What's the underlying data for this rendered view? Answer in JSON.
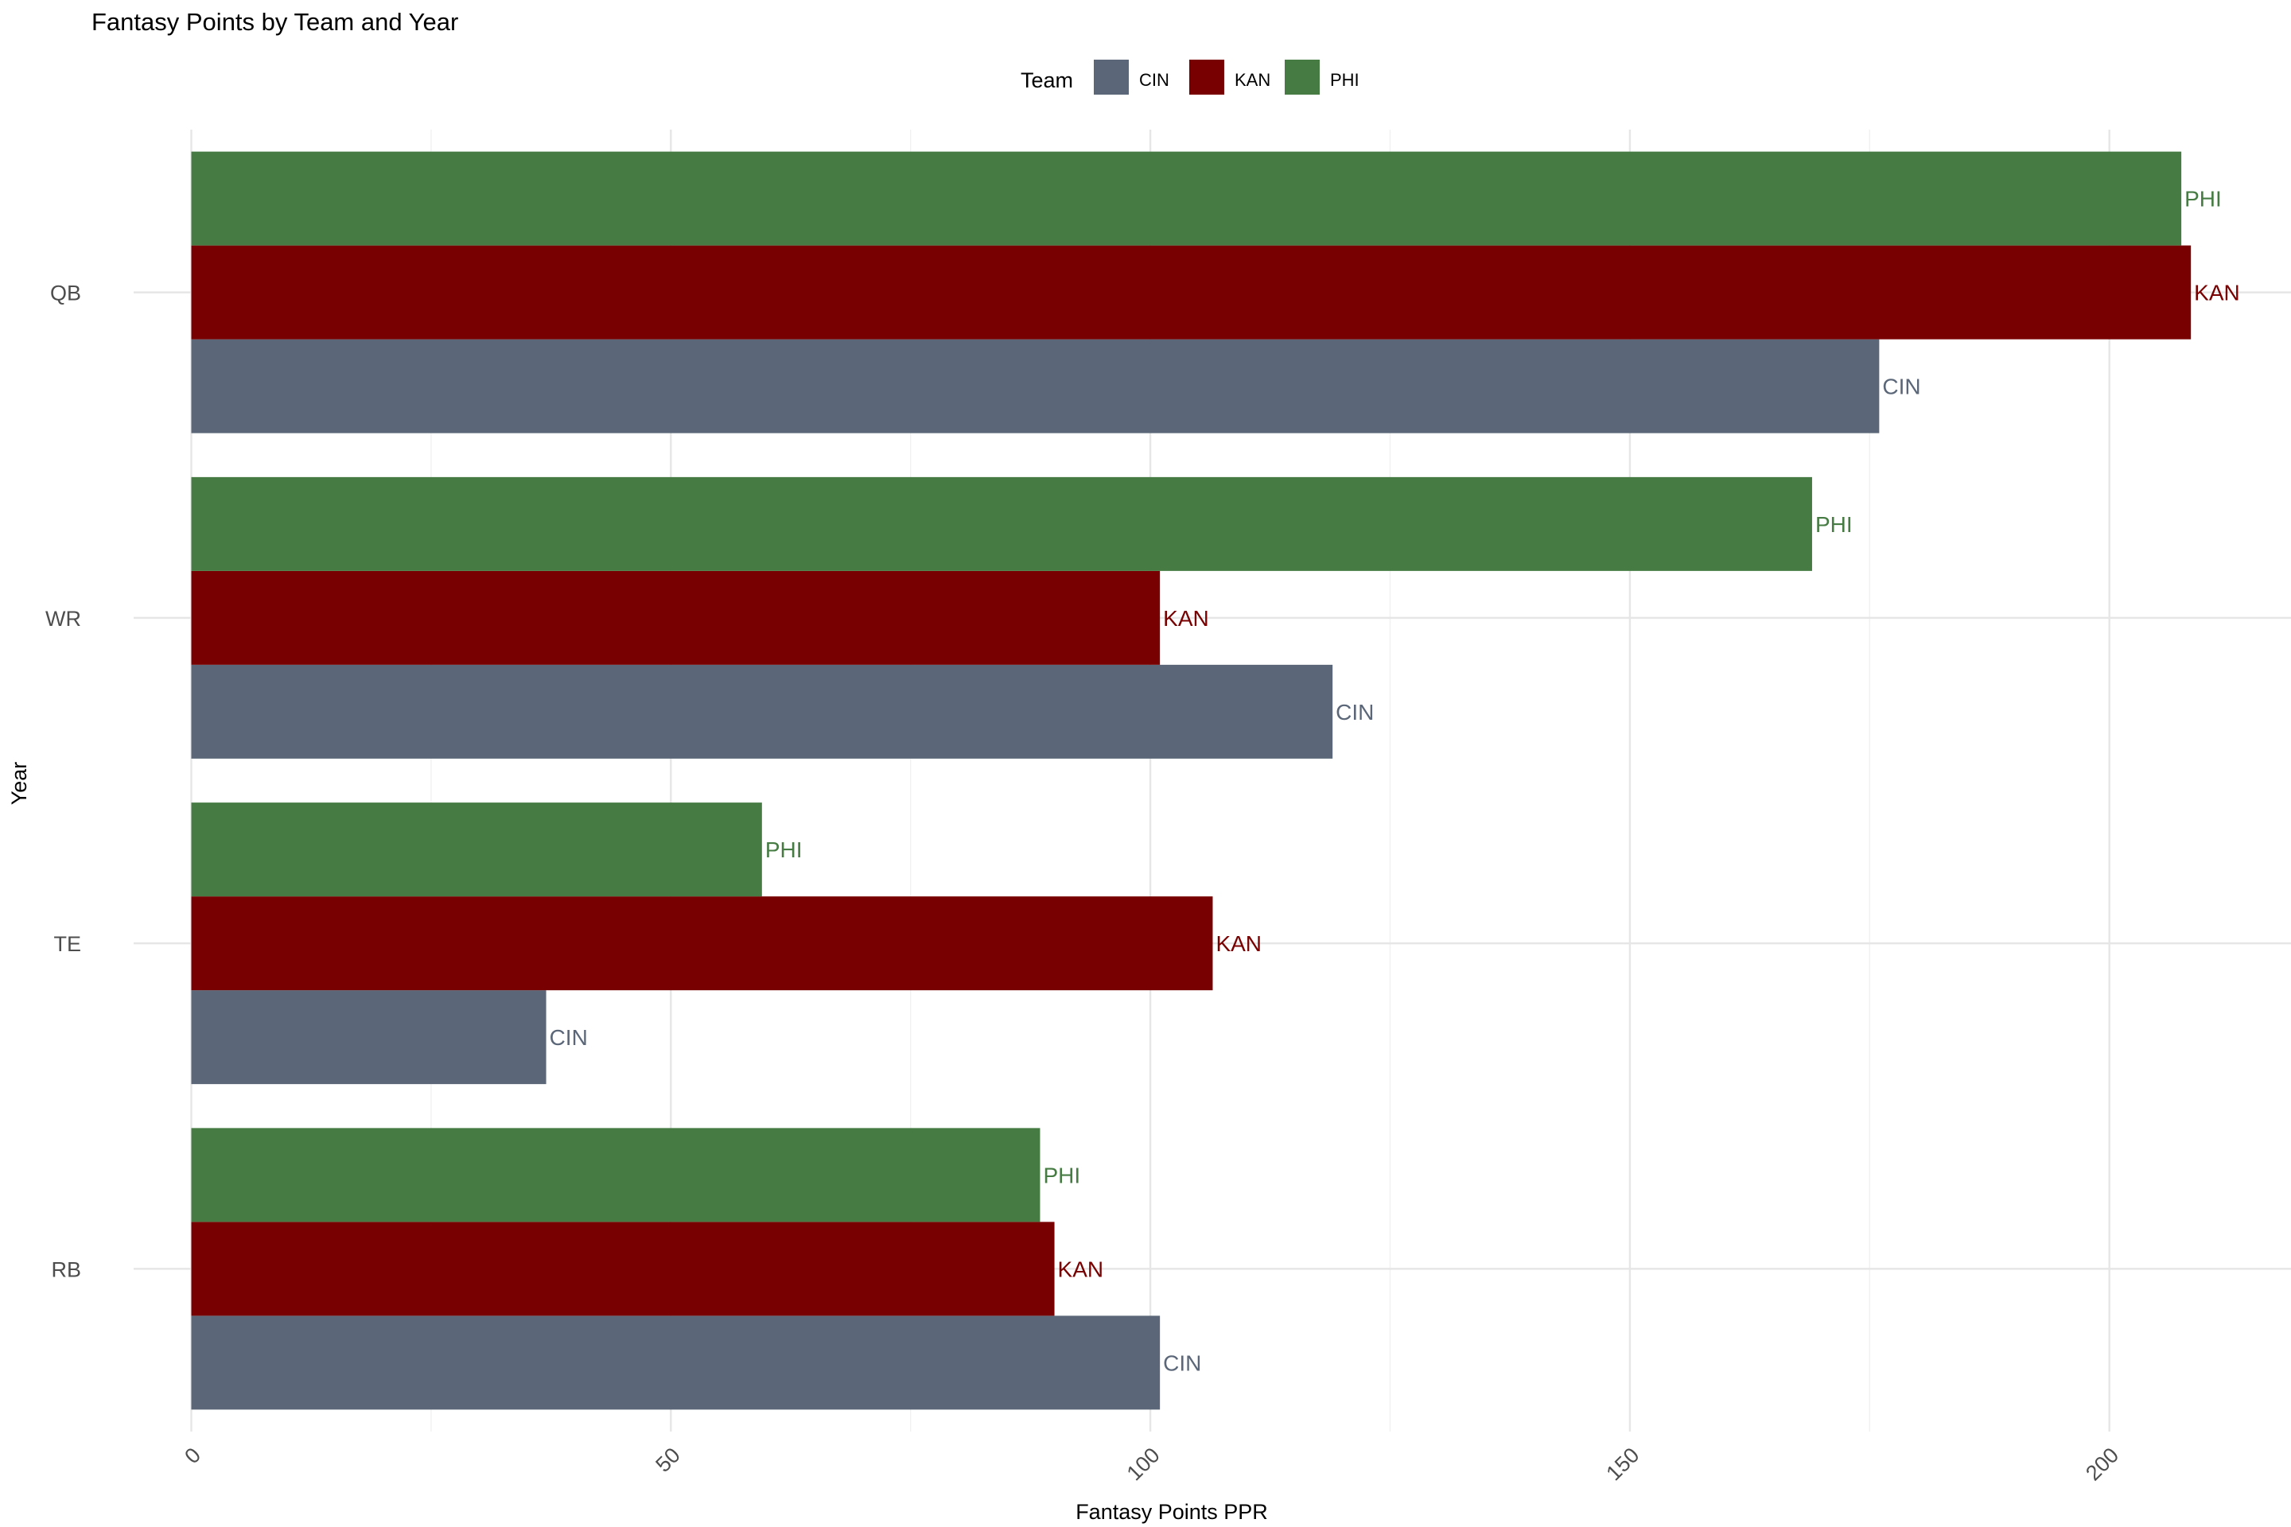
{
  "chart_data": {
    "type": "bar",
    "orientation": "horizontal",
    "title": "Fantasy Points by Team and Year",
    "xlabel": "Fantasy Points PPR",
    "ylabel": "Year",
    "categories": [
      "QB",
      "WR",
      "TE",
      "RB"
    ],
    "series": [
      {
        "name": "CIN",
        "color": "#5b6778",
        "values": [
          176,
          119,
          37,
          101
        ]
      },
      {
        "name": "KAN",
        "color": "#780000",
        "values": [
          208.5,
          101,
          106.5,
          90
        ]
      },
      {
        "name": "PHI",
        "color": "#467c43",
        "values": [
          207.5,
          169,
          59.5,
          88.5
        ]
      }
    ],
    "xlim": [
      0,
      218.7
    ],
    "xticks": [
      "0",
      "50",
      "100",
      "150",
      "200"
    ],
    "xtick_values": [
      0,
      50,
      100,
      150,
      200
    ],
    "legend": {
      "title": "Team",
      "position": "top"
    },
    "grid": true,
    "data_labels": true
  }
}
